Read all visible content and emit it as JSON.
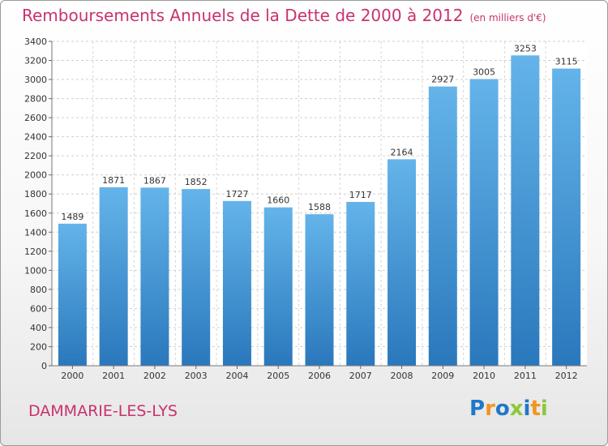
{
  "header": {
    "title": "Remboursements Annuels de la Dette de 2000 à 2012",
    "unit": "(en milliers d'€)"
  },
  "footer": {
    "city": "DAMMARIE-LES-LYS",
    "logo": [
      "P",
      "r",
      "o",
      "x",
      "i",
      "t",
      "i"
    ]
  },
  "colors": {
    "title": "#c8326e",
    "bar_top": "#64b4ea",
    "bar_bottom": "#2a78bc",
    "logo": [
      "#1f78c8",
      "#f0961e",
      "#1f78c8",
      "#8cc83c",
      "#1f78c8",
      "#f0961e",
      "#8cc83c"
    ]
  },
  "chart_data": {
    "type": "bar",
    "categories": [
      "2000",
      "2001",
      "2002",
      "2003",
      "2004",
      "2005",
      "2006",
      "2007",
      "2008",
      "2009",
      "2010",
      "2011",
      "2012"
    ],
    "values": [
      1489,
      1871,
      1867,
      1852,
      1727,
      1660,
      1588,
      1717,
      2164,
      2927,
      3005,
      3253,
      3115
    ],
    "ylim": [
      0,
      3400
    ],
    "yticks": [
      0,
      200,
      400,
      600,
      800,
      1000,
      1200,
      1400,
      1600,
      1800,
      2000,
      2200,
      2400,
      2600,
      2800,
      3000,
      3200,
      3400
    ],
    "grid": true,
    "legend": "none"
  }
}
